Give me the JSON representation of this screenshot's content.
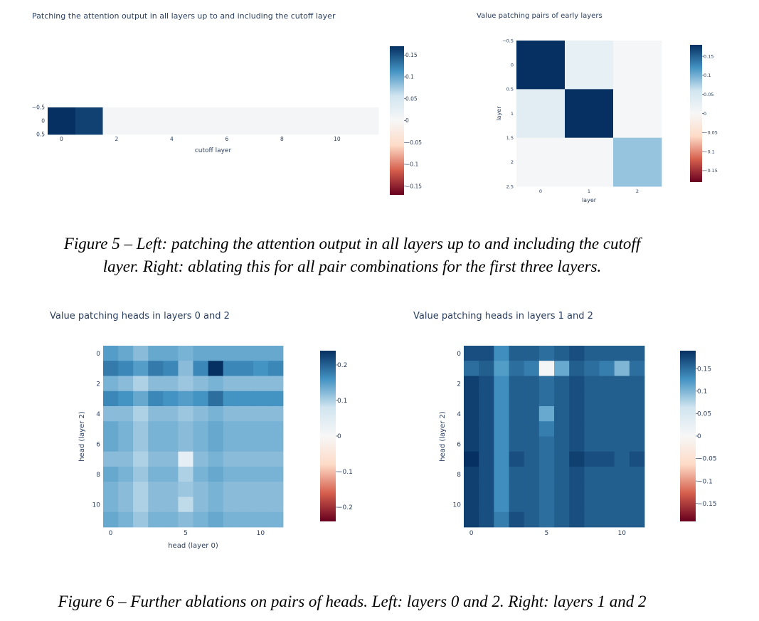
{
  "figure5": {
    "caption_line1": "Figure 5 – Left: patching the attention output in all layers up to and including the cutoff",
    "caption_line2": "layer. Right: ablating this for all pair combinations for the first three layers."
  },
  "figure6": {
    "caption": "Figure 6 – Further ablations on pairs of heads. Left: layers 0 and 2. Right: layers 1 and 2"
  },
  "colorscale": {
    "dark_red": "#67001f",
    "red": "#d6604d",
    "light_red": "#fddbc7",
    "white": "#f7f7f7",
    "light_blue": "#d1e5f0",
    "blue": "#4393c3",
    "dark_blue": "#053061"
  },
  "chart_data": [
    {
      "type": "heatmap",
      "title": "Patching the attention output in all layers up to and including the cutoff layer",
      "xlabel": "cutoff layer",
      "ylabel": "",
      "x": [
        0,
        1,
        2,
        3,
        4,
        5,
        6,
        7,
        8,
        9,
        10,
        11
      ],
      "y": [
        0
      ],
      "z": [
        [
          0.17,
          0.16,
          0.005,
          0.005,
          0.005,
          0.005,
          0.005,
          0.005,
          0.005,
          0.005,
          0.005,
          0.005
        ]
      ],
      "x_ticks": [
        "0",
        "2",
        "4",
        "6",
        "8",
        "10"
      ],
      "y_ticks": [
        "−0.5",
        "0",
        "0.5"
      ],
      "zmin": -0.17,
      "zmax": 0.17,
      "colorbar_ticks": [
        "0.15",
        "0.1",
        "0.05",
        "0",
        "−0.05",
        "−0.1",
        "−0.15"
      ]
    },
    {
      "type": "heatmap",
      "title": "Value patching pairs of early layers",
      "xlabel": "layer",
      "ylabel": "layer",
      "x": [
        0,
        1,
        2
      ],
      "y": [
        0,
        1,
        2
      ],
      "z": [
        [
          0.18,
          0.025,
          0.003
        ],
        [
          0.035,
          0.18,
          0.003
        ],
        [
          0.003,
          0.003,
          0.085
        ]
      ],
      "x_ticks": [
        "0",
        "1",
        "2"
      ],
      "y_ticks": [
        "−0.5",
        "0",
        "0.5",
        "1",
        "1.5",
        "2",
        "2.5"
      ],
      "zmin": -0.18,
      "zmax": 0.18,
      "colorbar_ticks": [
        "0.15",
        "0.1",
        "0.05",
        "0",
        "−0.05",
        "−0.1",
        "−0.15"
      ]
    },
    {
      "type": "heatmap",
      "title": "Value patching heads in layers 0 and 2",
      "xlabel": "head (layer 0)",
      "ylabel": "head (layer 2)",
      "x": [
        0,
        1,
        2,
        3,
        4,
        5,
        6,
        7,
        8,
        9,
        10,
        11
      ],
      "y": [
        0,
        1,
        2,
        3,
        4,
        5,
        6,
        7,
        8,
        9,
        10,
        11
      ],
      "z": [
        [
          0.15,
          0.14,
          0.12,
          0.14,
          0.14,
          0.13,
          0.14,
          0.14,
          0.14,
          0.14,
          0.14,
          0.14
        ],
        [
          0.18,
          0.17,
          0.15,
          0.18,
          0.17,
          0.12,
          0.17,
          0.24,
          0.17,
          0.17,
          0.16,
          0.17
        ],
        [
          0.13,
          0.12,
          0.1,
          0.12,
          0.12,
          0.11,
          0.12,
          0.13,
          0.12,
          0.12,
          0.12,
          0.12
        ],
        [
          0.17,
          0.16,
          0.14,
          0.17,
          0.16,
          0.15,
          0.16,
          0.19,
          0.16,
          0.16,
          0.16,
          0.16
        ],
        [
          0.12,
          0.12,
          0.1,
          0.12,
          0.12,
          0.11,
          0.12,
          0.13,
          0.12,
          0.12,
          0.12,
          0.12
        ],
        [
          0.14,
          0.13,
          0.11,
          0.13,
          0.13,
          0.12,
          0.13,
          0.14,
          0.13,
          0.13,
          0.13,
          0.13
        ],
        [
          0.14,
          0.13,
          0.11,
          0.13,
          0.13,
          0.12,
          0.13,
          0.14,
          0.13,
          0.13,
          0.13,
          0.13
        ],
        [
          0.12,
          0.12,
          0.1,
          0.12,
          0.12,
          0.04,
          0.12,
          0.13,
          0.12,
          0.12,
          0.12,
          0.12
        ],
        [
          0.14,
          0.13,
          0.11,
          0.13,
          0.13,
          0.1,
          0.13,
          0.14,
          0.13,
          0.13,
          0.13,
          0.13
        ],
        [
          0.13,
          0.12,
          0.1,
          0.12,
          0.12,
          0.11,
          0.12,
          0.13,
          0.12,
          0.12,
          0.12,
          0.12
        ],
        [
          0.13,
          0.12,
          0.1,
          0.12,
          0.12,
          0.09,
          0.12,
          0.13,
          0.12,
          0.12,
          0.12,
          0.12
        ],
        [
          0.14,
          0.13,
          0.11,
          0.13,
          0.13,
          0.12,
          0.13,
          0.14,
          0.13,
          0.13,
          0.13,
          0.13
        ]
      ],
      "x_ticks": [
        "0",
        "5",
        "10"
      ],
      "y_ticks": [
        "0",
        "2",
        "4",
        "6",
        "8",
        "10"
      ],
      "zmin": -0.24,
      "zmax": 0.24,
      "colorbar_ticks": [
        "0.2",
        "0.1",
        "0",
        "−0.1",
        "−0.2"
      ]
    },
    {
      "type": "heatmap",
      "title": "Value patching heads in layers 1 and 2",
      "xlabel": "",
      "ylabel": "head (layer 2)",
      "x": [
        0,
        1,
        2,
        3,
        4,
        5,
        6,
        7,
        8,
        9,
        10,
        11
      ],
      "y": [
        0,
        1,
        2,
        3,
        4,
        5,
        6,
        7,
        8,
        9,
        10,
        11
      ],
      "z": [
        [
          0.17,
          0.17,
          0.13,
          0.16,
          0.16,
          0.15,
          0.16,
          0.17,
          0.16,
          0.16,
          0.16,
          0.16
        ],
        [
          0.15,
          0.16,
          0.12,
          0.15,
          0.14,
          0.005,
          0.11,
          0.16,
          0.15,
          0.14,
          0.1,
          0.15
        ],
        [
          0.18,
          0.17,
          0.13,
          0.16,
          0.16,
          0.15,
          0.16,
          0.17,
          0.16,
          0.16,
          0.16,
          0.16
        ],
        [
          0.18,
          0.17,
          0.13,
          0.16,
          0.16,
          0.15,
          0.16,
          0.17,
          0.16,
          0.16,
          0.16,
          0.16
        ],
        [
          0.18,
          0.17,
          0.13,
          0.16,
          0.16,
          0.11,
          0.16,
          0.17,
          0.16,
          0.16,
          0.16,
          0.16
        ],
        [
          0.18,
          0.17,
          0.13,
          0.16,
          0.16,
          0.14,
          0.16,
          0.17,
          0.16,
          0.16,
          0.16,
          0.16
        ],
        [
          0.18,
          0.17,
          0.13,
          0.16,
          0.16,
          0.15,
          0.16,
          0.17,
          0.16,
          0.16,
          0.16,
          0.16
        ],
        [
          0.19,
          0.17,
          0.13,
          0.17,
          0.16,
          0.15,
          0.16,
          0.18,
          0.17,
          0.17,
          0.16,
          0.17
        ],
        [
          0.18,
          0.17,
          0.13,
          0.16,
          0.16,
          0.15,
          0.16,
          0.17,
          0.16,
          0.16,
          0.16,
          0.16
        ],
        [
          0.18,
          0.17,
          0.13,
          0.16,
          0.16,
          0.15,
          0.16,
          0.17,
          0.16,
          0.16,
          0.16,
          0.16
        ],
        [
          0.18,
          0.17,
          0.13,
          0.16,
          0.16,
          0.15,
          0.16,
          0.17,
          0.16,
          0.16,
          0.16,
          0.16
        ],
        [
          0.18,
          0.17,
          0.14,
          0.17,
          0.16,
          0.15,
          0.16,
          0.17,
          0.16,
          0.16,
          0.16,
          0.16
        ]
      ],
      "x_ticks": [
        "0",
        "5",
        "10"
      ],
      "y_ticks": [
        "0",
        "2",
        "4",
        "6",
        "8",
        "10"
      ],
      "zmin": -0.19,
      "zmax": 0.19,
      "colorbar_ticks": [
        "0.15",
        "0.1",
        "0.05",
        "0",
        "−0.05",
        "−0.1",
        "−0.15"
      ]
    }
  ]
}
